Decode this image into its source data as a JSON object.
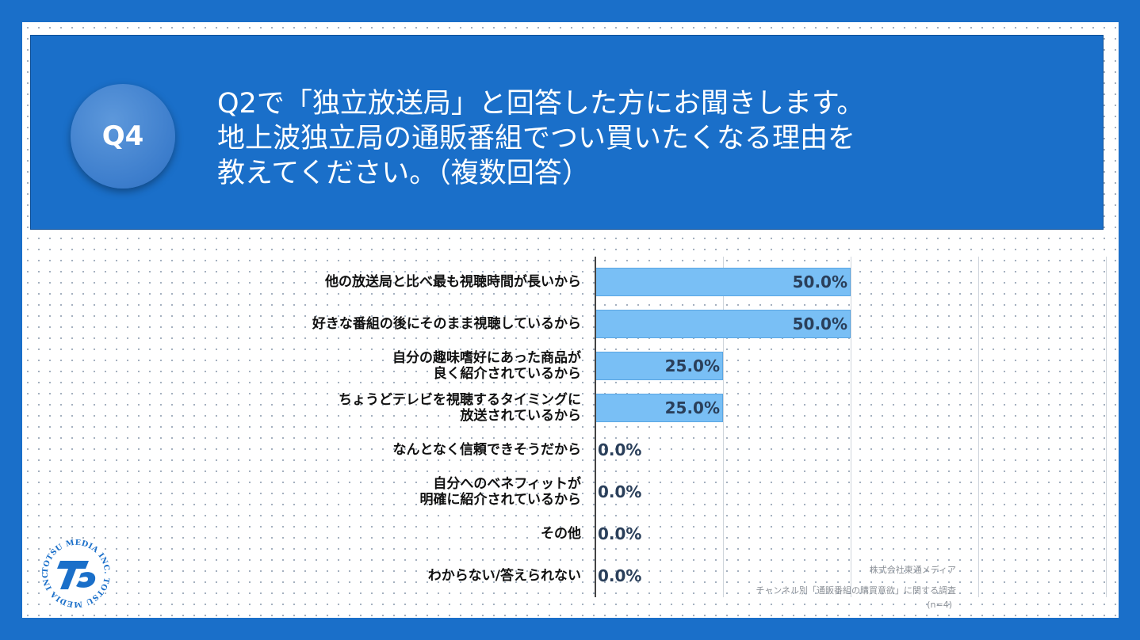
{
  "question": {
    "badge": "Q4",
    "lines": [
      "Q2で「独立放送局」と回答した方にお聞きします。",
      "地上波独立局の通販番組でつい買いたくなる理由を",
      "教えてください。（複数回答）"
    ]
  },
  "chart_data": {
    "type": "bar",
    "orientation": "horizontal",
    "categories": [
      [
        "他の放送局と比べ最も視聴時間が長いから"
      ],
      [
        "好きな番組の後にそのまま視聴しているから"
      ],
      [
        "自分の趣味嗜好にあった商品が",
        "良く紹介されているから"
      ],
      [
        "ちょうどテレビを視聴するタイミングに",
        "放送されているから"
      ],
      [
        "なんとなく信頼できそうだから"
      ],
      [
        "自分へのベネフィットが",
        "明確に紹介されているから"
      ],
      [
        "その他"
      ],
      [
        "わからない/答えられない"
      ]
    ],
    "values": [
      50.0,
      50.0,
      25.0,
      25.0,
      0.0,
      0.0,
      0.0,
      0.0
    ],
    "value_labels": [
      "50.0%",
      "50.0%",
      "25.0%",
      "25.0%",
      "0.0%",
      "0.0%",
      "0.0%",
      "0.0%"
    ],
    "xlim": [
      0,
      100
    ],
    "bar_color": "#79bff5",
    "grid": true
  },
  "source": {
    "lines": [
      "株式会社東通メディア",
      "チャンネル別「通販番組の購買意欲」に関する調査",
      "(n=4)"
    ]
  },
  "logo": {
    "ring_text": "TOTSU MEDIA INC. TOTSU MEDIA INC. ",
    "mark": "TS",
    "color": "#1a6fc9"
  },
  "colors": {
    "header_bg": "#1a6fc9",
    "frame": "#1a6fc9",
    "bar": "#79bff5"
  }
}
